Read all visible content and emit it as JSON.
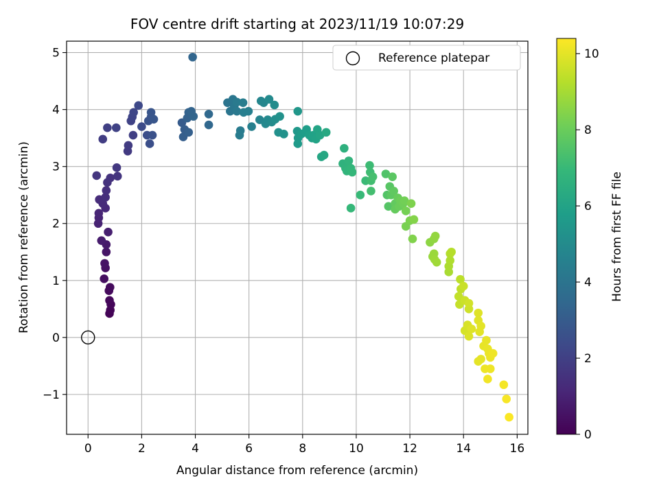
{
  "chart_data": {
    "type": "scatter",
    "title": "FOV centre drift starting at 2023/11/19 10:07:29",
    "xlabel": "Angular distance from reference (arcmin)",
    "ylabel": "Rotation from reference (arcmin)",
    "xlim": [
      -0.8,
      16.4
    ],
    "ylim": [
      -1.7,
      5.2
    ],
    "xticks": [
      0,
      2,
      4,
      6,
      8,
      10,
      12,
      14,
      16
    ],
    "yticks": [
      -1,
      0,
      1,
      2,
      3,
      4,
      5
    ],
    "ytick_labels": [
      "−1",
      "0",
      "1",
      "2",
      "3",
      "4",
      "5"
    ],
    "grid": true,
    "legend": {
      "placement": "top-right",
      "entries": [
        "Reference platepar"
      ]
    },
    "reference_point": {
      "x": 0,
      "y": 0,
      "marker": "open-circle"
    },
    "colorbar": {
      "label": "Hours from first FF file",
      "range": [
        0,
        10.4
      ],
      "ticks": [
        0,
        2,
        4,
        6,
        8,
        10
      ],
      "colormap": "viridis",
      "colors": [
        "#440154",
        "#482878",
        "#3e4989",
        "#31688e",
        "#26828e",
        "#1f9e89",
        "#35b779",
        "#6ece58",
        "#b5de2b",
        "#fde725"
      ]
    },
    "points": [
      {
        "x": 0.8,
        "y": 0.42,
        "t": 0.05
      },
      {
        "x": 0.83,
        "y": 0.48,
        "t": 0.1
      },
      {
        "x": 0.85,
        "y": 0.58,
        "t": 0.15
      },
      {
        "x": 0.8,
        "y": 0.65,
        "t": 0.2
      },
      {
        "x": 0.78,
        "y": 0.82,
        "t": 0.25
      },
      {
        "x": 0.82,
        "y": 0.88,
        "t": 0.3
      },
      {
        "x": 0.6,
        "y": 1.03,
        "t": 0.4
      },
      {
        "x": 0.65,
        "y": 1.22,
        "t": 0.45
      },
      {
        "x": 0.62,
        "y": 1.3,
        "t": 0.5
      },
      {
        "x": 0.68,
        "y": 1.5,
        "t": 0.6
      },
      {
        "x": 0.68,
        "y": 1.63,
        "t": 0.7
      },
      {
        "x": 0.5,
        "y": 1.7,
        "t": 0.8
      },
      {
        "x": 0.75,
        "y": 1.85,
        "t": 0.9
      },
      {
        "x": 0.38,
        "y": 2.0,
        "t": 1.0
      },
      {
        "x": 0.4,
        "y": 2.1,
        "t": 1.05
      },
      {
        "x": 0.4,
        "y": 2.18,
        "t": 1.1
      },
      {
        "x": 0.65,
        "y": 2.27,
        "t": 1.2
      },
      {
        "x": 0.55,
        "y": 2.35,
        "t": 1.25
      },
      {
        "x": 0.42,
        "y": 2.42,
        "t": 1.3
      },
      {
        "x": 0.65,
        "y": 2.46,
        "t": 1.35
      },
      {
        "x": 0.68,
        "y": 2.58,
        "t": 1.4
      },
      {
        "x": 0.72,
        "y": 2.72,
        "t": 1.5
      },
      {
        "x": 0.83,
        "y": 2.8,
        "t": 1.55
      },
      {
        "x": 1.1,
        "y": 2.83,
        "t": 1.6
      },
      {
        "x": 0.32,
        "y": 2.84,
        "t": 1.65
      },
      {
        "x": 1.07,
        "y": 2.98,
        "t": 1.7
      },
      {
        "x": 1.48,
        "y": 3.27,
        "t": 1.8
      },
      {
        "x": 1.5,
        "y": 3.37,
        "t": 1.85
      },
      {
        "x": 0.55,
        "y": 3.48,
        "t": 1.9
      },
      {
        "x": 1.68,
        "y": 3.55,
        "t": 1.95
      },
      {
        "x": 0.72,
        "y": 3.68,
        "t": 2.0
      },
      {
        "x": 1.05,
        "y": 3.68,
        "t": 2.05
      },
      {
        "x": 1.6,
        "y": 3.8,
        "t": 2.1
      },
      {
        "x": 1.65,
        "y": 3.87,
        "t": 2.15
      },
      {
        "x": 1.7,
        "y": 3.95,
        "t": 2.2
      },
      {
        "x": 1.88,
        "y": 4.07,
        "t": 2.3
      },
      {
        "x": 2.0,
        "y": 3.7,
        "t": 2.4
      },
      {
        "x": 2.2,
        "y": 3.55,
        "t": 2.5
      },
      {
        "x": 2.3,
        "y": 3.4,
        "t": 2.55
      },
      {
        "x": 2.4,
        "y": 3.55,
        "t": 2.6
      },
      {
        "x": 2.25,
        "y": 3.8,
        "t": 2.65
      },
      {
        "x": 2.35,
        "y": 3.87,
        "t": 2.7
      },
      {
        "x": 2.35,
        "y": 3.95,
        "t": 2.75
      },
      {
        "x": 2.45,
        "y": 3.83,
        "t": 2.8
      },
      {
        "x": 3.5,
        "y": 3.77,
        "t": 3.0
      },
      {
        "x": 3.6,
        "y": 3.65,
        "t": 3.05
      },
      {
        "x": 3.55,
        "y": 3.52,
        "t": 3.1
      },
      {
        "x": 3.75,
        "y": 3.6,
        "t": 3.15
      },
      {
        "x": 3.7,
        "y": 3.85,
        "t": 3.2
      },
      {
        "x": 3.75,
        "y": 3.95,
        "t": 3.25
      },
      {
        "x": 3.85,
        "y": 3.97,
        "t": 3.3
      },
      {
        "x": 3.93,
        "y": 3.88,
        "t": 3.35
      },
      {
        "x": 3.9,
        "y": 4.92,
        "t": 3.4
      },
      {
        "x": 4.5,
        "y": 3.73,
        "t": 3.45
      },
      {
        "x": 4.5,
        "y": 3.92,
        "t": 3.5
      },
      {
        "x": 5.2,
        "y": 4.12,
        "t": 4.0
      },
      {
        "x": 5.3,
        "y": 3.97,
        "t": 4.05
      },
      {
        "x": 5.4,
        "y": 4.18,
        "t": 4.1
      },
      {
        "x": 5.45,
        "y": 4.05,
        "t": 4.15
      },
      {
        "x": 5.55,
        "y": 3.97,
        "t": 4.2
      },
      {
        "x": 5.55,
        "y": 4.13,
        "t": 4.25
      },
      {
        "x": 5.68,
        "y": 3.63,
        "t": 4.3
      },
      {
        "x": 5.65,
        "y": 3.55,
        "t": 4.35
      },
      {
        "x": 5.78,
        "y": 4.12,
        "t": 4.4
      },
      {
        "x": 5.8,
        "y": 3.95,
        "t": 4.45
      },
      {
        "x": 5.98,
        "y": 3.97,
        "t": 4.5
      },
      {
        "x": 6.1,
        "y": 3.7,
        "t": 4.55
      },
      {
        "x": 6.4,
        "y": 3.82,
        "t": 4.7
      },
      {
        "x": 6.45,
        "y": 4.15,
        "t": 4.75
      },
      {
        "x": 6.55,
        "y": 4.12,
        "t": 4.8
      },
      {
        "x": 6.62,
        "y": 3.75,
        "t": 4.85
      },
      {
        "x": 6.7,
        "y": 3.82,
        "t": 4.9
      },
      {
        "x": 6.75,
        "y": 4.18,
        "t": 4.95
      },
      {
        "x": 6.85,
        "y": 3.78,
        "t": 5.0
      },
      {
        "x": 6.95,
        "y": 4.08,
        "t": 5.05
      },
      {
        "x": 6.98,
        "y": 3.83,
        "t": 5.1
      },
      {
        "x": 7.1,
        "y": 3.6,
        "t": 5.2
      },
      {
        "x": 7.15,
        "y": 3.88,
        "t": 5.25
      },
      {
        "x": 7.3,
        "y": 3.57,
        "t": 5.3
      },
      {
        "x": 7.82,
        "y": 3.97,
        "t": 5.5
      },
      {
        "x": 7.8,
        "y": 3.62,
        "t": 5.55
      },
      {
        "x": 7.83,
        "y": 3.5,
        "t": 5.6
      },
      {
        "x": 7.82,
        "y": 3.4,
        "t": 5.65
      },
      {
        "x": 7.95,
        "y": 3.57,
        "t": 5.7
      },
      {
        "x": 8.1,
        "y": 3.6,
        "t": 5.75
      },
      {
        "x": 8.15,
        "y": 3.65,
        "t": 5.8
      },
      {
        "x": 8.25,
        "y": 3.55,
        "t": 5.85
      },
      {
        "x": 8.35,
        "y": 3.5,
        "t": 5.9
      },
      {
        "x": 8.4,
        "y": 3.55,
        "t": 5.95
      },
      {
        "x": 8.5,
        "y": 3.48,
        "t": 6.0
      },
      {
        "x": 8.55,
        "y": 3.65,
        "t": 6.05
      },
      {
        "x": 8.65,
        "y": 3.55,
        "t": 6.1
      },
      {
        "x": 8.7,
        "y": 3.17,
        "t": 6.15
      },
      {
        "x": 8.8,
        "y": 3.2,
        "t": 6.2
      },
      {
        "x": 8.88,
        "y": 3.6,
        "t": 6.25
      },
      {
        "x": 9.55,
        "y": 3.32,
        "t": 6.6
      },
      {
        "x": 9.5,
        "y": 3.05,
        "t": 6.65
      },
      {
        "x": 9.6,
        "y": 2.97,
        "t": 6.7
      },
      {
        "x": 9.72,
        "y": 3.1,
        "t": 6.75
      },
      {
        "x": 9.65,
        "y": 2.92,
        "t": 6.8
      },
      {
        "x": 9.8,
        "y": 2.97,
        "t": 6.85
      },
      {
        "x": 9.85,
        "y": 2.9,
        "t": 6.9
      },
      {
        "x": 9.8,
        "y": 2.27,
        "t": 6.95
      },
      {
        "x": 10.15,
        "y": 2.5,
        "t": 7.0
      },
      {
        "x": 10.35,
        "y": 2.75,
        "t": 7.05
      },
      {
        "x": 10.5,
        "y": 3.02,
        "t": 7.1
      },
      {
        "x": 10.52,
        "y": 2.9,
        "t": 7.15
      },
      {
        "x": 10.55,
        "y": 2.75,
        "t": 7.2
      },
      {
        "x": 10.55,
        "y": 2.57,
        "t": 7.25
      },
      {
        "x": 10.62,
        "y": 2.82,
        "t": 7.3
      },
      {
        "x": 11.1,
        "y": 2.87,
        "t": 7.5
      },
      {
        "x": 11.15,
        "y": 2.5,
        "t": 7.55
      },
      {
        "x": 11.2,
        "y": 2.3,
        "t": 7.6
      },
      {
        "x": 11.25,
        "y": 2.65,
        "t": 7.65
      },
      {
        "x": 11.35,
        "y": 2.82,
        "t": 7.7
      },
      {
        "x": 11.3,
        "y": 2.5,
        "t": 7.75
      },
      {
        "x": 11.4,
        "y": 2.57,
        "t": 7.8
      },
      {
        "x": 11.45,
        "y": 2.35,
        "t": 7.85
      },
      {
        "x": 11.45,
        "y": 2.25,
        "t": 7.9
      },
      {
        "x": 11.55,
        "y": 2.45,
        "t": 7.95
      },
      {
        "x": 11.6,
        "y": 2.3,
        "t": 8.0
      },
      {
        "x": 11.65,
        "y": 2.4,
        "t": 8.05
      },
      {
        "x": 11.75,
        "y": 2.35,
        "t": 8.1
      },
      {
        "x": 11.8,
        "y": 2.4,
        "t": 8.15
      },
      {
        "x": 11.85,
        "y": 2.22,
        "t": 8.2
      },
      {
        "x": 11.85,
        "y": 1.95,
        "t": 8.25
      },
      {
        "x": 12.0,
        "y": 2.05,
        "t": 8.3
      },
      {
        "x": 12.05,
        "y": 2.35,
        "t": 8.35
      },
      {
        "x": 12.1,
        "y": 1.73,
        "t": 8.4
      },
      {
        "x": 12.15,
        "y": 2.07,
        "t": 8.45
      },
      {
        "x": 12.75,
        "y": 1.67,
        "t": 8.6
      },
      {
        "x": 12.9,
        "y": 1.73,
        "t": 8.65
      },
      {
        "x": 12.95,
        "y": 1.78,
        "t": 8.7
      },
      {
        "x": 12.85,
        "y": 1.42,
        "t": 8.75
      },
      {
        "x": 12.9,
        "y": 1.47,
        "t": 8.8
      },
      {
        "x": 12.92,
        "y": 1.37,
        "t": 8.85
      },
      {
        "x": 13.0,
        "y": 1.32,
        "t": 8.9
      },
      {
        "x": 13.45,
        "y": 1.15,
        "t": 9.05
      },
      {
        "x": 13.45,
        "y": 1.25,
        "t": 9.1
      },
      {
        "x": 13.5,
        "y": 1.35,
        "t": 9.15
      },
      {
        "x": 13.5,
        "y": 1.47,
        "t": 9.2
      },
      {
        "x": 13.55,
        "y": 1.5,
        "t": 9.25
      },
      {
        "x": 13.88,
        "y": 1.02,
        "t": 9.35
      },
      {
        "x": 13.9,
        "y": 0.85,
        "t": 9.4
      },
      {
        "x": 13.82,
        "y": 0.72,
        "t": 9.45
      },
      {
        "x": 13.85,
        "y": 0.58,
        "t": 9.5
      },
      {
        "x": 14.0,
        "y": 0.9,
        "t": 9.55
      },
      {
        "x": 14.05,
        "y": 0.65,
        "t": 9.6
      },
      {
        "x": 14.2,
        "y": 0.5,
        "t": 9.65
      },
      {
        "x": 14.2,
        "y": 0.6,
        "t": 9.7
      },
      {
        "x": 14.05,
        "y": 0.12,
        "t": 9.75
      },
      {
        "x": 14.15,
        "y": 0.22,
        "t": 9.8
      },
      {
        "x": 14.2,
        "y": 0.02,
        "t": 9.85
      },
      {
        "x": 14.3,
        "y": 0.15,
        "t": 9.9
      },
      {
        "x": 14.55,
        "y": 0.43,
        "t": 9.92
      },
      {
        "x": 14.55,
        "y": 0.3,
        "t": 9.94
      },
      {
        "x": 14.6,
        "y": 0.1,
        "t": 9.96
      },
      {
        "x": 14.65,
        "y": 0.2,
        "t": 9.98
      },
      {
        "x": 14.55,
        "y": -0.42,
        "t": 10.0
      },
      {
        "x": 14.65,
        "y": -0.38,
        "t": 10.02
      },
      {
        "x": 14.75,
        "y": -0.15,
        "t": 10.04
      },
      {
        "x": 14.85,
        "y": -0.05,
        "t": 10.06
      },
      {
        "x": 14.9,
        "y": -0.2,
        "t": 10.08
      },
      {
        "x": 14.95,
        "y": -0.28,
        "t": 10.1
      },
      {
        "x": 15.0,
        "y": -0.35,
        "t": 10.12
      },
      {
        "x": 14.8,
        "y": -0.55,
        "t": 10.14
      },
      {
        "x": 15.0,
        "y": -0.55,
        "t": 10.16
      },
      {
        "x": 15.1,
        "y": -0.28,
        "t": 10.18
      },
      {
        "x": 14.9,
        "y": -0.73,
        "t": 10.2
      },
      {
        "x": 15.5,
        "y": -0.83,
        "t": 10.25
      },
      {
        "x": 15.6,
        "y": -1.08,
        "t": 10.3
      },
      {
        "x": 15.7,
        "y": -1.4,
        "t": 10.35
      }
    ]
  }
}
